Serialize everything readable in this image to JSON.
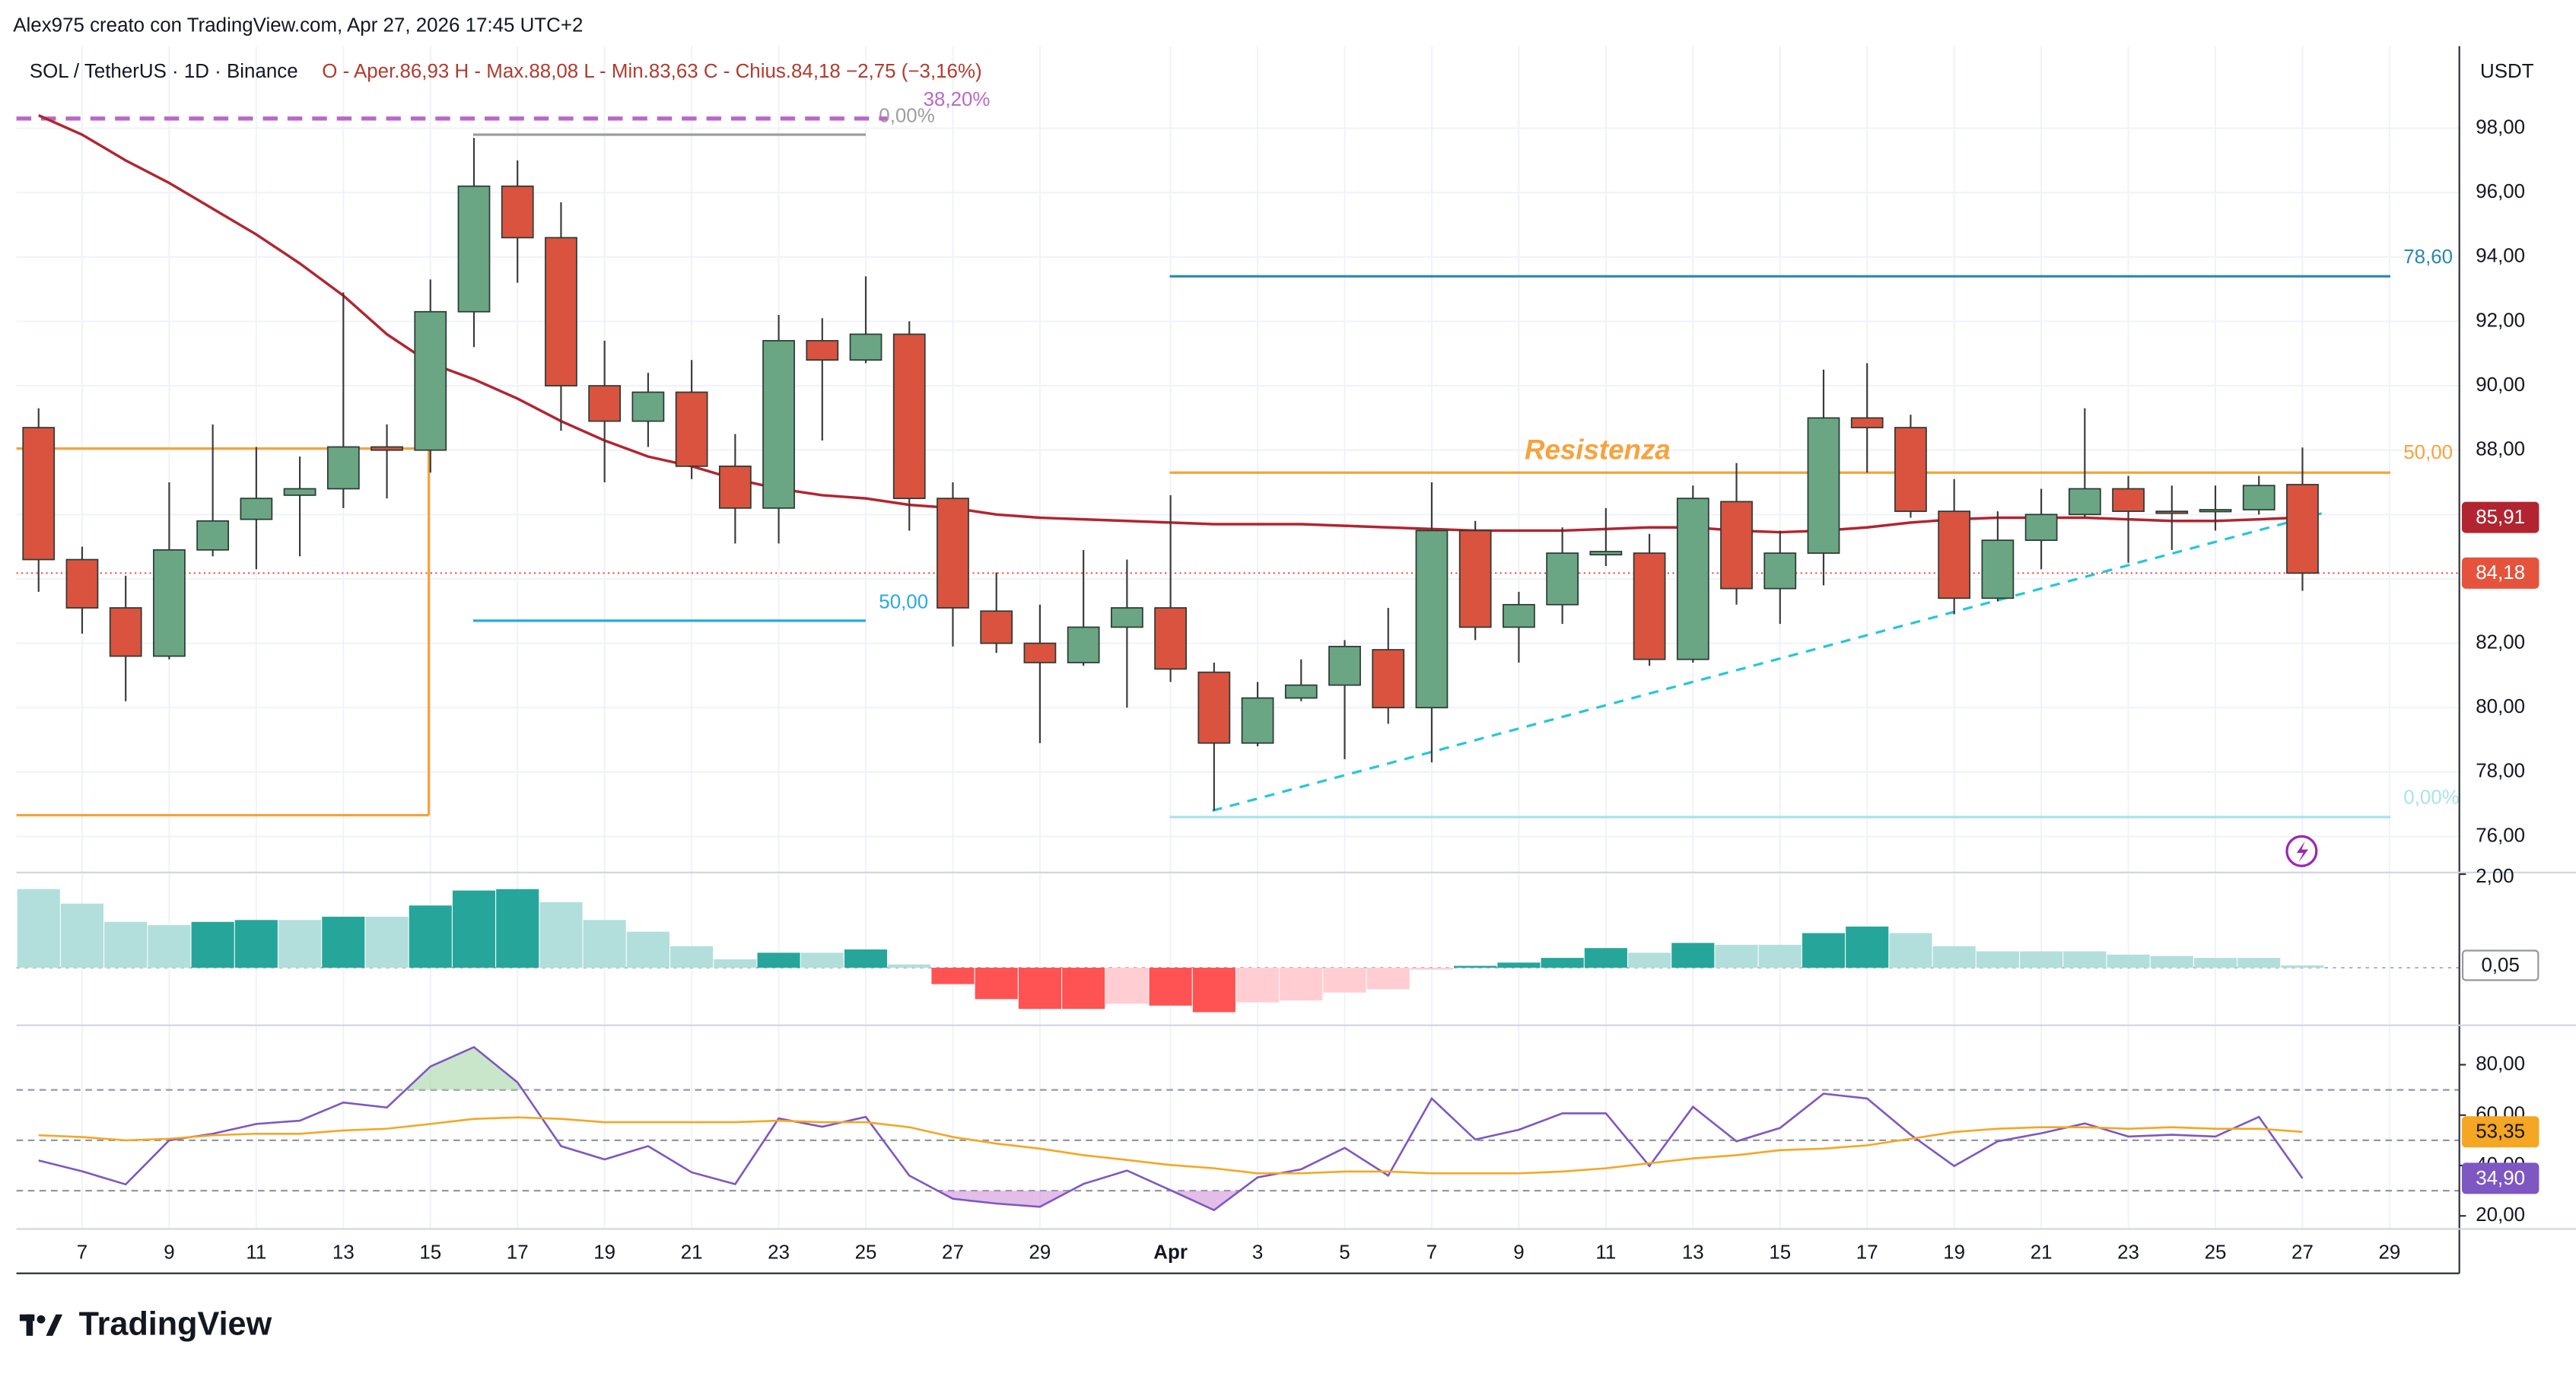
{
  "header": "Alex975 creato con TradingView.com, Apr 27, 2026 17:45 UTC+2",
  "logo": "TradingView",
  "chart_data": [
    {
      "type": "candlestick",
      "title": "SOL / TetherUS · 1D · Binance",
      "ohlc_text": "O - Aper.86,93  H - Max.88,08  L - Min.83,63  C - Chius.84,18  −2,75 (−3,16%)",
      "unit": "USDT",
      "categories": [
        null,
        "7",
        null,
        "9",
        null,
        "11",
        null,
        "13",
        null,
        "15",
        null,
        "17",
        null,
        "19",
        null,
        "21",
        null,
        "23",
        null,
        "25",
        null,
        "27",
        null,
        "29",
        null,
        null,
        "Apr",
        null,
        "3",
        null,
        "5",
        null,
        "7",
        null,
        "9",
        null,
        "11",
        null,
        "13",
        null,
        "15",
        null,
        "17",
        null,
        "19",
        null,
        "21",
        null,
        "23",
        null,
        "25",
        null,
        "27",
        null,
        "29"
      ],
      "open": [
        88.7,
        84.6,
        83.1,
        81.6,
        84.9,
        85.85,
        86.6,
        86.8,
        88.1,
        88.0,
        92.3,
        96.2,
        94.6,
        90.0,
        88.9,
        89.8,
        87.5,
        86.2,
        91.4,
        90.8,
        91.6,
        86.5,
        83.0,
        82.0,
        81.4,
        82.5,
        83.1,
        81.1,
        78.9,
        80.3,
        80.7,
        81.8,
        80.0,
        85.5,
        82.5,
        83.2,
        84.75,
        84.8,
        81.5,
        86.4,
        83.7,
        84.8,
        89.0,
        88.7,
        86.1,
        83.4,
        85.2,
        86.0,
        86.8,
        86.1,
        86.1,
        86.15,
        86.93,
        null,
        null
      ],
      "high": [
        89.3,
        85.0,
        84.1,
        87.0,
        88.8,
        88.1,
        87.8,
        92.9,
        88.8,
        93.3,
        97.7,
        97.0,
        95.7,
        91.4,
        90.4,
        90.8,
        88.5,
        92.2,
        92.1,
        93.4,
        92.0,
        87.0,
        84.2,
        83.2,
        84.9,
        84.6,
        86.6,
        81.4,
        80.8,
        81.5,
        82.1,
        83.1,
        87.0,
        85.8,
        83.6,
        85.6,
        86.2,
        85.4,
        86.9,
        87.6,
        85.5,
        90.5,
        90.7,
        89.1,
        87.1,
        86.1,
        86.8,
        89.3,
        87.2,
        86.9,
        86.9,
        87.2,
        88.08,
        null,
        null
      ],
      "low": [
        83.6,
        82.3,
        80.2,
        81.5,
        84.7,
        84.3,
        84.7,
        86.2,
        86.5,
        87.3,
        91.2,
        93.2,
        88.6,
        87.0,
        88.1,
        87.1,
        85.1,
        85.1,
        88.3,
        90.7,
        85.5,
        81.9,
        81.7,
        78.9,
        81.3,
        80.0,
        80.8,
        76.8,
        78.8,
        80.2,
        78.4,
        79.5,
        78.3,
        82.1,
        81.4,
        82.6,
        84.4,
        81.3,
        81.4,
        83.2,
        82.6,
        83.8,
        87.3,
        85.9,
        82.9,
        83.3,
        84.3,
        85.9,
        84.5,
        84.9,
        85.5,
        86.0,
        83.63,
        null,
        null
      ],
      "close": [
        84.6,
        83.1,
        81.6,
        84.9,
        85.8,
        86.5,
        86.8,
        88.1,
        88.0,
        92.3,
        96.2,
        94.6,
        90.0,
        88.9,
        89.8,
        87.5,
        86.2,
        91.4,
        90.8,
        91.6,
        86.5,
        83.1,
        82.0,
        81.4,
        82.5,
        83.1,
        81.2,
        78.9,
        80.3,
        80.7,
        81.9,
        80.0,
        85.5,
        82.5,
        83.2,
        84.8,
        84.85,
        81.5,
        86.5,
        83.7,
        84.8,
        89.0,
        88.7,
        86.1,
        83.4,
        85.2,
        86.0,
        86.8,
        86.1,
        86.05,
        86.15,
        86.9,
        84.18,
        null,
        null
      ],
      "up_color": "#6aa683",
      "down_color": "#d9533f",
      "ma": {
        "color": "#b22530",
        "values": [
          98.4,
          97.8,
          97.0,
          96.3,
          95.5,
          94.7,
          93.8,
          92.8,
          91.6,
          90.7,
          90.2,
          89.6,
          88.9,
          88.3,
          87.8,
          87.5,
          87.1,
          86.8,
          86.6,
          86.5,
          86.3,
          86.2,
          86.0,
          85.9,
          85.85,
          85.8,
          85.75,
          85.7,
          85.7,
          85.7,
          85.65,
          85.6,
          85.55,
          85.5,
          85.5,
          85.5,
          85.55,
          85.6,
          85.6,
          85.5,
          85.45,
          85.5,
          85.6,
          85.75,
          85.85,
          85.9,
          85.9,
          85.9,
          85.85,
          85.8,
          85.8,
          85.85,
          85.91,
          null,
          null
        ]
      },
      "ma_label": {
        "value": 85.91,
        "label": "85,91"
      },
      "close_label": {
        "value": 84.18,
        "label": "84,18"
      },
      "ylim": [
        74.93,
        100.55
      ],
      "yticks": [
        {
          "value": 76,
          "label": "76,00"
        },
        {
          "value": 78,
          "label": "78,00"
        },
        {
          "value": 80,
          "label": "80,00"
        },
        {
          "value": 82,
          "label": "82,00"
        },
        {
          "value": 84,
          "label": "84,00"
        },
        {
          "value": 86,
          "label": "86,00"
        },
        {
          "value": 88,
          "label": "88,00"
        },
        {
          "value": 90,
          "label": "90,00"
        },
        {
          "value": 92,
          "label": "92,00"
        },
        {
          "value": 94,
          "label": "94,00"
        },
        {
          "value": 96,
          "label": "96,00"
        },
        {
          "value": 98,
          "label": "98,00"
        }
      ],
      "grid": true,
      "levels": [
        {
          "label": "0,00%",
          "value": 97.8,
          "color": "#9e9e9e"
        },
        {
          "label": "38,20%",
          "value": 98.3,
          "color": "#ba68c8"
        },
        {
          "label": "50,00",
          "value": 82.7,
          "color": "#29a9e0"
        },
        {
          "label": "78,60",
          "value": 93.4,
          "color": "#2a86b0"
        },
        {
          "label": "50,00",
          "value": 87.3,
          "color": "#f5a33c"
        },
        {
          "label": "0,00%",
          "value": 76.6,
          "color": "#a9e2ee"
        }
      ],
      "annotation": "Resistenza",
      "box": {
        "top": 88.05,
        "bottom": 76.66,
        "color": "#f5a33c"
      },
      "trendline": {
        "from": 76.8,
        "to": 86.1,
        "color": "#26c6da"
      }
    },
    {
      "type": "bar",
      "values": [
        1.68,
        1.37,
        0.98,
        0.91,
        0.98,
        1.02,
        1.02,
        1.09,
        1.09,
        1.33,
        1.65,
        1.68,
        1.4,
        1.02,
        0.77,
        0.46,
        0.18,
        0.32,
        0.32,
        0.39,
        0.07,
        -0.35,
        -0.67,
        -0.88,
        -0.88,
        -0.77,
        -0.81,
        -0.95,
        -0.74,
        -0.7,
        -0.53,
        -0.46,
        -0.04,
        0.04,
        0.11,
        0.21,
        0.42,
        0.32,
        0.53,
        0.49,
        0.49,
        0.74,
        0.88,
        0.74,
        0.46,
        0.35,
        0.35,
        0.35,
        0.28,
        0.25,
        0.21,
        0.21,
        0.05,
        null,
        null
      ],
      "colors": {
        "up_rising": "#26a69a",
        "up_falling": "#b2dfdb",
        "down_falling": "#ff5252",
        "down_rising": "#ffcdd2"
      },
      "ylim": [
        -1.16,
        2.0
      ],
      "yticks": [
        {
          "value": 2,
          "label": "2,00"
        }
      ],
      "last_label": {
        "value": 0.05,
        "label": "0,05"
      }
    },
    {
      "type": "line",
      "series": [
        {
          "color": "#7e57c2",
          "values": [
            42,
            37.7,
            32.5,
            50,
            52.6,
            56.5,
            57.8,
            65,
            63,
            79.3,
            87,
            73,
            47.7,
            42.4,
            47.7,
            37.3,
            32.6,
            58.7,
            55.4,
            59.3,
            36,
            26.8,
            24.9,
            23.6,
            32.7,
            38,
            30.2,
            22.3,
            35.3,
            38.5,
            47,
            36,
            66.6,
            50.3,
            54.2,
            60.7,
            60.7,
            39.8,
            63.3,
            49.6,
            54.9,
            68.5,
            66.6,
            52.2,
            39.8,
            49.6,
            52.8,
            56.7,
            51.5,
            52.2,
            51.5,
            59.3,
            34.9,
            null,
            null
          ],
          "last_label": {
            "value": 34.9,
            "label": "34,90"
          }
        },
        {
          "color": "#f5a623",
          "values": [
            52,
            51.3,
            50,
            50.6,
            52,
            52.6,
            52.6,
            53.9,
            54.6,
            56.5,
            58.5,
            59.1,
            58.5,
            57.2,
            57.2,
            57.2,
            57.2,
            57.8,
            57.2,
            57.2,
            55.2,
            51.3,
            48.7,
            46.7,
            44.1,
            42.2,
            40.2,
            38.9,
            36.9,
            36.9,
            37.6,
            37.6,
            36.9,
            36.9,
            36.9,
            37.6,
            38.9,
            40.9,
            42.8,
            44.1,
            46.1,
            46.7,
            48,
            50.6,
            53.3,
            54.6,
            55.2,
            55.2,
            54.6,
            55.2,
            54.6,
            54.6,
            53.35,
            null,
            null
          ],
          "last_label": {
            "value": 53.35,
            "label": "53,35"
          }
        }
      ],
      "hlines": [
        70,
        50,
        30
      ],
      "ylim": [
        14.8,
        95
      ],
      "yticks": [
        {
          "value": 20,
          "label": "20,00"
        },
        {
          "value": 40,
          "label": "40,00"
        },
        {
          "value": 60,
          "label": "60,00"
        },
        {
          "value": 80,
          "label": "80,00"
        }
      ]
    }
  ]
}
